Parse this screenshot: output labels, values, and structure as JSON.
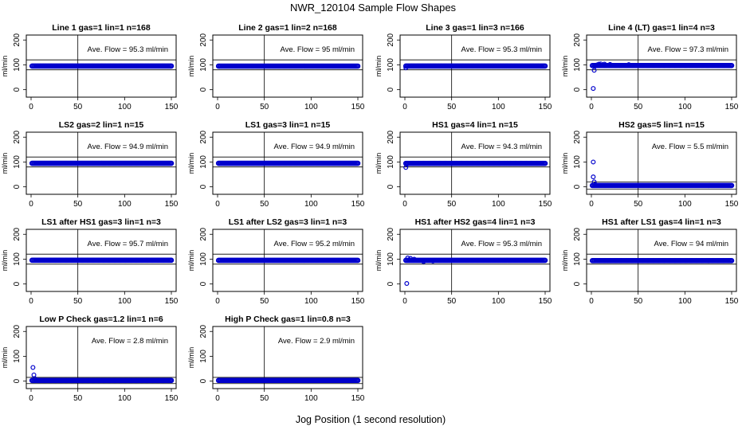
{
  "title": "NWR_120104  Sample Flow Shapes",
  "xlabel": "Jog Position (1 second resolution)",
  "colors": {
    "points": "#0000cc",
    "axes": "#000000",
    "background": "#ffffff"
  },
  "chart_data": [
    {
      "type": "scatter",
      "title": "Line 1 gas=1 lin=1 n=168",
      "ylabel": "ml/min",
      "annotation": "Ave. Flow = 95.3  ml/min",
      "ave_flow": 95.3,
      "xlim": [
        0,
        150
      ],
      "ylim": [
        -30,
        220
      ],
      "xticks": [
        0,
        50,
        100,
        150
      ],
      "yticks": [
        0,
        100,
        200
      ],
      "vline": 50,
      "hline": [
        80,
        120
      ],
      "points": []
    },
    {
      "type": "scatter",
      "title": "Line 2 gas=1 lin=2 n=168",
      "ylabel": "ml/min",
      "annotation": "Ave. Flow = 95  ml/min",
      "ave_flow": 95,
      "xlim": [
        0,
        150
      ],
      "ylim": [
        -30,
        220
      ],
      "xticks": [
        0,
        50,
        100,
        150
      ],
      "yticks": [
        0,
        100,
        200
      ],
      "vline": 50,
      "hline": [
        80,
        120
      ],
      "points": []
    },
    {
      "type": "scatter",
      "title": "Line 3 gas=1 lin=3 n=166",
      "ylabel": "ml/min",
      "annotation": "Ave. Flow = 95.3  ml/min",
      "ave_flow": 95.3,
      "xlim": [
        0,
        150
      ],
      "ylim": [
        -30,
        220
      ],
      "xticks": [
        0,
        50,
        100,
        150
      ],
      "yticks": [
        0,
        100,
        200
      ],
      "vline": 50,
      "hline": [
        80,
        120
      ],
      "points": [
        [
          1,
          88
        ]
      ]
    },
    {
      "type": "scatter",
      "title": "Line 4 (LT) gas=1 lin=4 n=3",
      "ylabel": "ml/min",
      "annotation": "Ave. Flow = 97.3  ml/min",
      "ave_flow": 97.3,
      "xlim": [
        0,
        150
      ],
      "ylim": [
        -30,
        220
      ],
      "xticks": [
        0,
        50,
        100,
        150
      ],
      "yticks": [
        0,
        100,
        200
      ],
      "vline": 50,
      "hline": [
        80,
        120
      ],
      "points": [
        [
          2,
          5
        ],
        [
          3,
          78
        ],
        [
          4,
          95
        ],
        [
          6,
          100
        ],
        [
          8,
          103
        ],
        [
          10,
          104
        ],
        [
          14,
          103
        ],
        [
          20,
          102
        ],
        [
          40,
          101
        ]
      ]
    },
    {
      "type": "scatter",
      "title": "LS2 gas=2 lin=1 n=15",
      "ylabel": "ml/min",
      "annotation": "Ave. Flow = 94.9  ml/min",
      "ave_flow": 94.9,
      "xlim": [
        0,
        150
      ],
      "ylim": [
        -30,
        220
      ],
      "xticks": [
        0,
        50,
        100,
        150
      ],
      "yticks": [
        0,
        100,
        200
      ],
      "vline": 50,
      "hline": [
        80,
        120
      ],
      "points": []
    },
    {
      "type": "scatter",
      "title": "LS1 gas=3 lin=1 n=15",
      "ylabel": "ml/min",
      "annotation": "Ave. Flow = 94.9  ml/min",
      "ave_flow": 94.9,
      "xlim": [
        0,
        150
      ],
      "ylim": [
        -30,
        220
      ],
      "xticks": [
        0,
        50,
        100,
        150
      ],
      "yticks": [
        0,
        100,
        200
      ],
      "vline": 50,
      "hline": [
        80,
        120
      ],
      "points": []
    },
    {
      "type": "scatter",
      "title": "HS1 gas=4 lin=1 n=15",
      "ylabel": "ml/min",
      "annotation": "Ave. Flow = 94.3  ml/min",
      "ave_flow": 94.3,
      "xlim": [
        0,
        150
      ],
      "ylim": [
        -30,
        220
      ],
      "xticks": [
        0,
        50,
        100,
        150
      ],
      "yticks": [
        0,
        100,
        200
      ],
      "vline": 50,
      "hline": [
        80,
        120
      ],
      "points": [
        [
          1,
          78
        ],
        [
          2,
          90
        ]
      ]
    },
    {
      "type": "scatter",
      "title": "HS2 gas=5 lin=1 n=15",
      "ylabel": "ml/min",
      "annotation": "Ave. Flow = 5.5  ml/min",
      "ave_flow": 5.5,
      "xlim": [
        0,
        150
      ],
      "ylim": [
        -30,
        220
      ],
      "xticks": [
        0,
        50,
        100,
        150
      ],
      "yticks": [
        0,
        100,
        200
      ],
      "vline": 50,
      "hline": [
        -10,
        20
      ],
      "points": [
        [
          2,
          100
        ],
        [
          2,
          40
        ],
        [
          3,
          20
        ],
        [
          4,
          10
        ]
      ]
    },
    {
      "type": "scatter",
      "title": "LS1 after HS1 gas=3 lin=1 n=3",
      "ylabel": "ml/min",
      "annotation": "Ave. Flow = 95.7  ml/min",
      "ave_flow": 95.7,
      "xlim": [
        0,
        150
      ],
      "ylim": [
        -30,
        220
      ],
      "xticks": [
        0,
        50,
        100,
        150
      ],
      "yticks": [
        0,
        100,
        200
      ],
      "vline": 50,
      "hline": [
        80,
        120
      ],
      "points": []
    },
    {
      "type": "scatter",
      "title": "LS1 after LS2 gas=3 lin=1 n=3",
      "ylabel": "ml/min",
      "annotation": "Ave. Flow = 95.2  ml/min",
      "ave_flow": 95.2,
      "xlim": [
        0,
        150
      ],
      "ylim": [
        -30,
        220
      ],
      "xticks": [
        0,
        50,
        100,
        150
      ],
      "yticks": [
        0,
        100,
        200
      ],
      "vline": 50,
      "hline": [
        80,
        120
      ],
      "points": []
    },
    {
      "type": "scatter",
      "title": "HS1 after HS2 gas=4 lin=1 n=3",
      "ylabel": "ml/min",
      "annotation": "Ave. Flow = 95.3  ml/min",
      "ave_flow": 95.3,
      "xlim": [
        0,
        150
      ],
      "ylim": [
        -30,
        220
      ],
      "xticks": [
        0,
        50,
        100,
        150
      ],
      "yticks": [
        0,
        100,
        200
      ],
      "vline": 50,
      "hline": [
        80,
        120
      ],
      "points": [
        [
          2,
          2
        ],
        [
          3,
          105
        ],
        [
          6,
          103
        ],
        [
          10,
          100
        ],
        [
          20,
          90
        ],
        [
          30,
          92
        ]
      ]
    },
    {
      "type": "scatter",
      "title": "HS1 after LS1 gas=4 lin=1 n=3",
      "ylabel": "ml/min",
      "annotation": "Ave. Flow = 94  ml/min",
      "ave_flow": 94,
      "xlim": [
        0,
        150
      ],
      "ylim": [
        -30,
        220
      ],
      "xticks": [
        0,
        50,
        100,
        150
      ],
      "yticks": [
        0,
        100,
        200
      ],
      "vline": 50,
      "hline": [
        80,
        120
      ],
      "points": []
    },
    {
      "type": "scatter",
      "title": "Low P Check gas=1.2 lin=1 n=6",
      "ylabel": "ml/min",
      "annotation": "Ave. Flow = 2.8  ml/min",
      "ave_flow": 2.8,
      "xlim": [
        0,
        150
      ],
      "ylim": [
        -30,
        220
      ],
      "xticks": [
        0,
        50,
        100,
        150
      ],
      "yticks": [
        0,
        100,
        200
      ],
      "vline": 50,
      "hline": [
        -10,
        15
      ],
      "points": [
        [
          2,
          55
        ],
        [
          3,
          25
        ],
        [
          4,
          10
        ]
      ]
    },
    {
      "type": "scatter",
      "title": "High P Check gas=1 lin=0.8 n=3",
      "ylabel": "ml/min",
      "annotation": "Ave. Flow = 2.9  ml/min",
      "ave_flow": 2.9,
      "xlim": [
        0,
        150
      ],
      "ylim": [
        -30,
        220
      ],
      "xticks": [
        0,
        50,
        100,
        150
      ],
      "yticks": [
        0,
        100,
        200
      ],
      "vline": 50,
      "hline": [
        -10,
        15
      ],
      "points": []
    }
  ]
}
